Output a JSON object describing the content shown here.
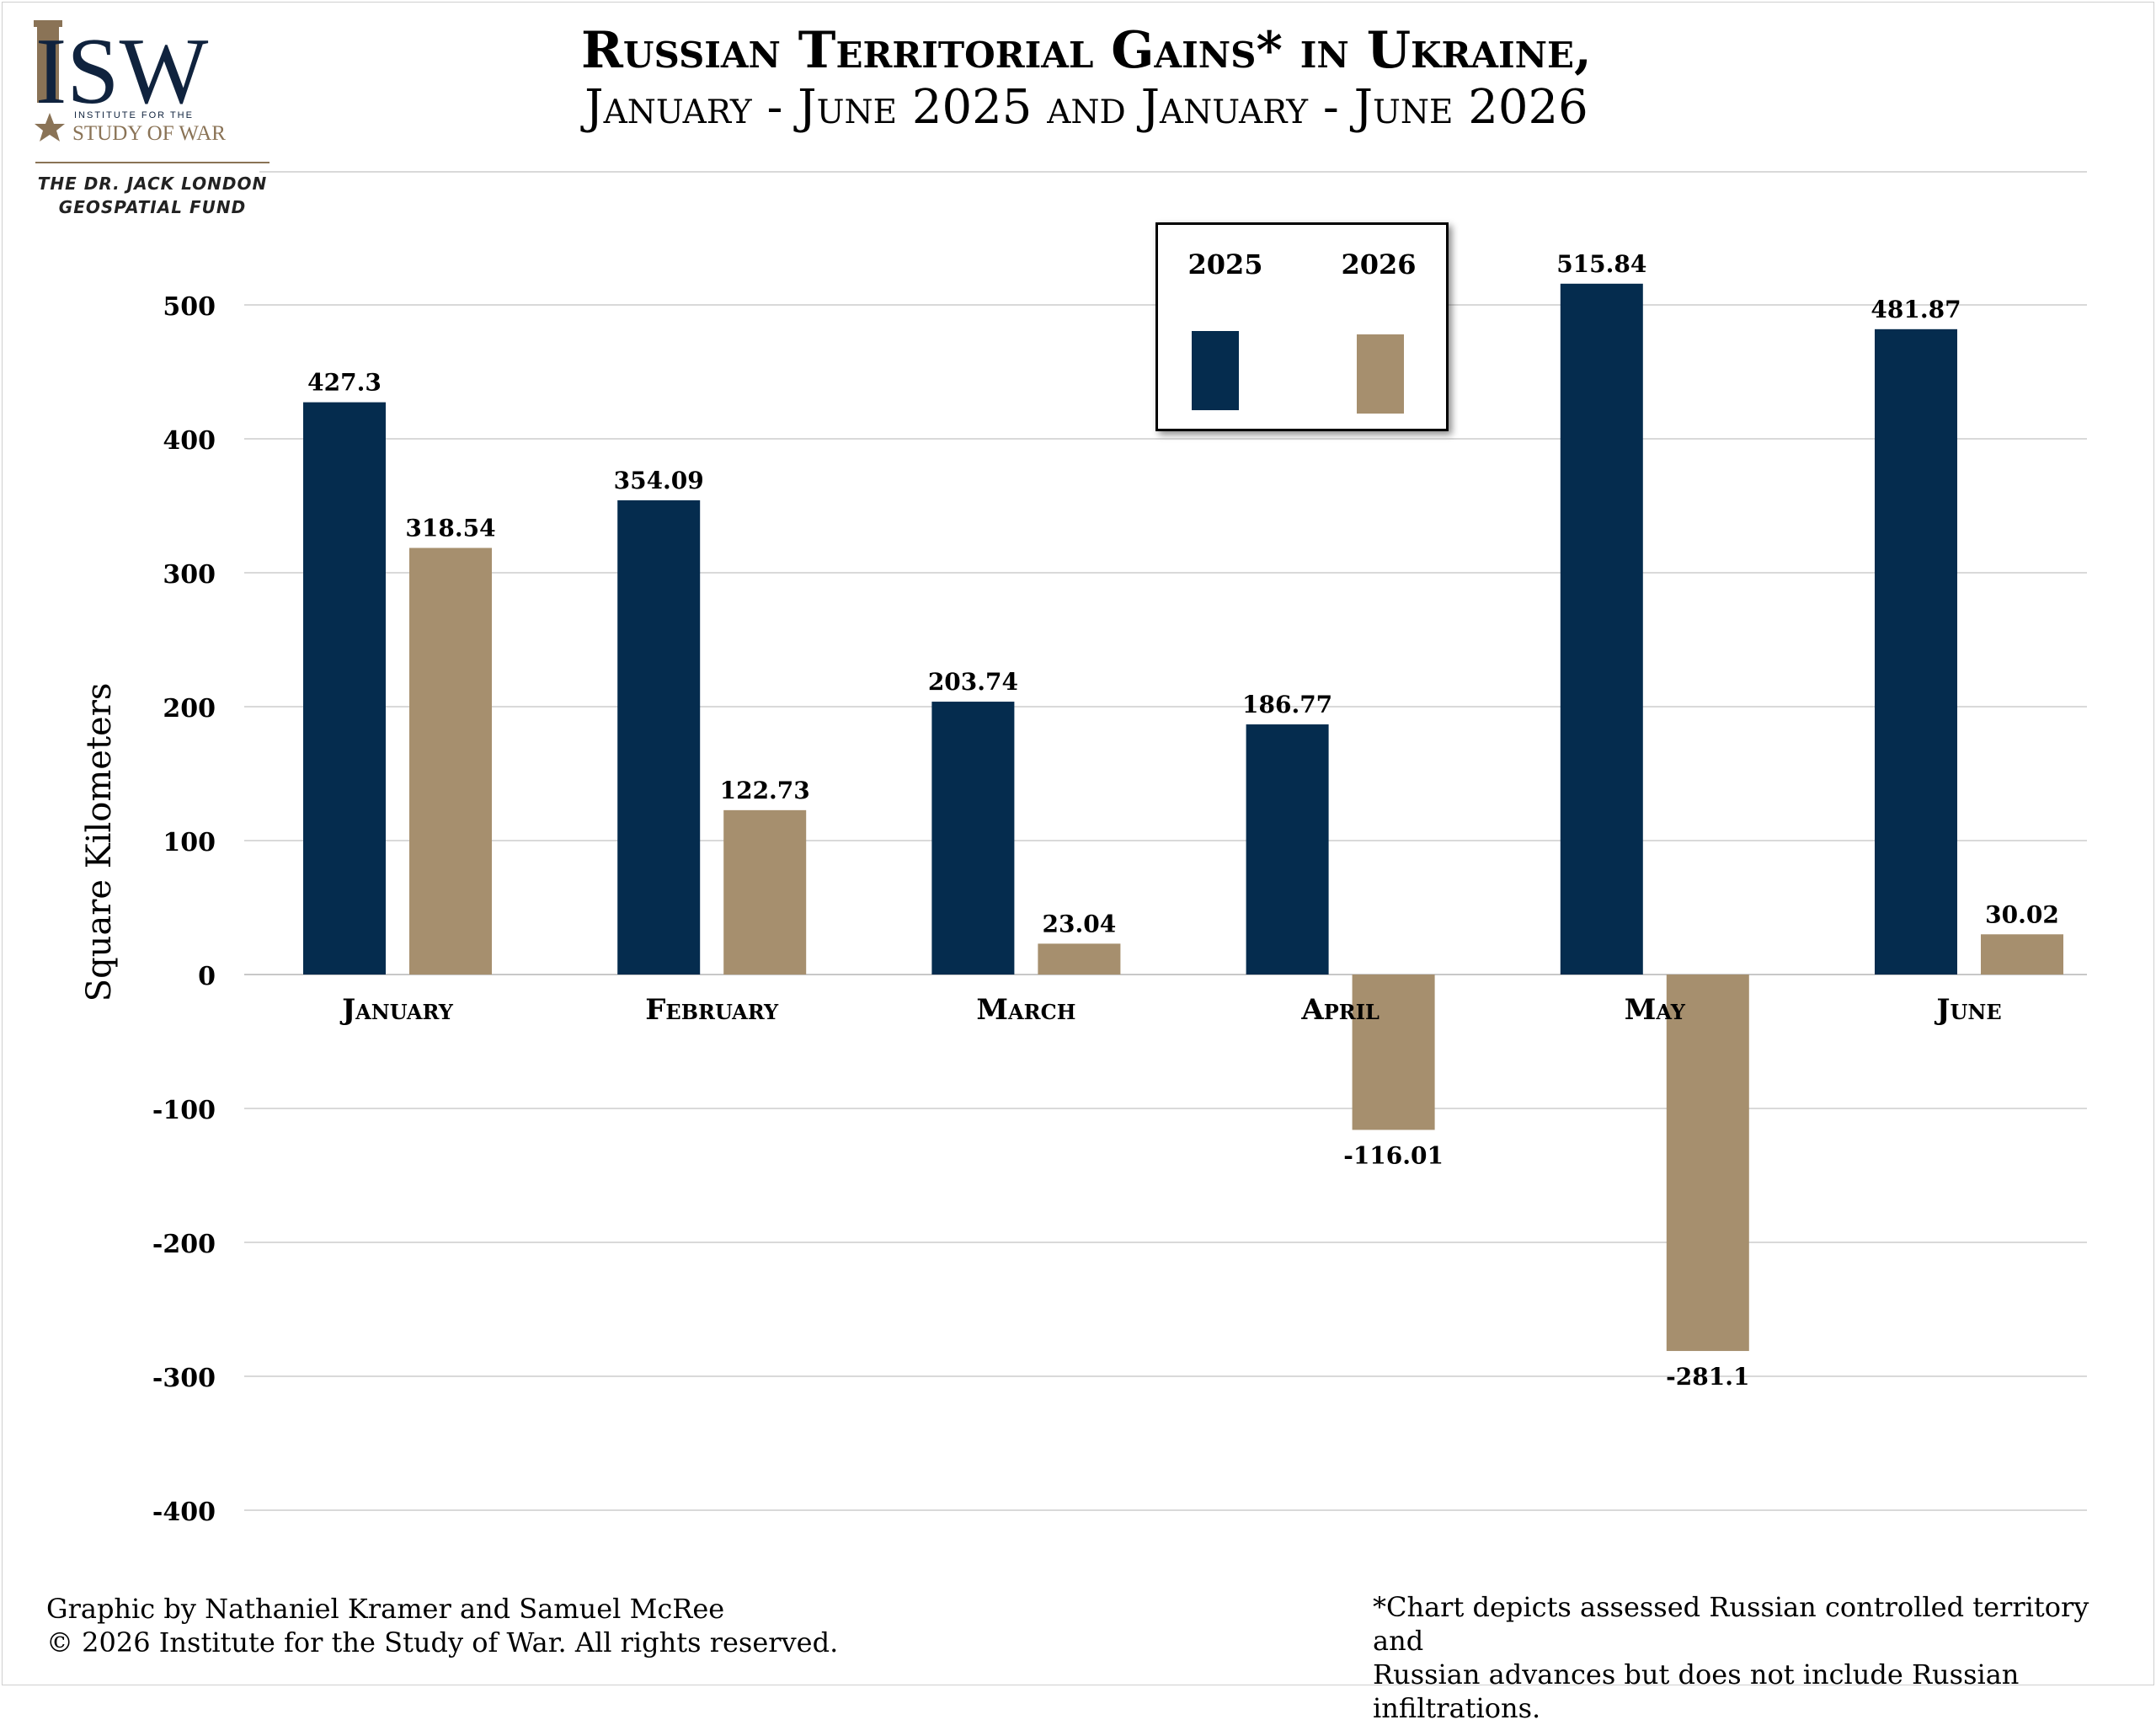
{
  "logo": {
    "letters": "ISW",
    "subtitle_small": "INSTITUTE FOR THE",
    "subtitle_big": "STUDY OF WAR",
    "fund_line1": "THE DR. JACK LONDON",
    "fund_line2": "GEOSPATIAL FUND"
  },
  "title": {
    "line1": "Russian Territorial Gains* in Ukraine,",
    "line2": "January - June 2025 and January - June 2026"
  },
  "credits": {
    "line1": "Graphic by Nathaniel Kramer and Samuel McRee",
    "line2": "© 2026 Institute for the Study of War. All rights reserved."
  },
  "footnote": {
    "line1": "*Chart depicts assessed Russian controlled territory and",
    "line2": "Russian advances but does not include Russian infiltrations."
  },
  "colors": {
    "series_2025": "#052c4e",
    "series_2026": "#a68f6e",
    "grid": "#d9d9d9",
    "logo_brown": "#8a7356",
    "logo_navy": "#10233e"
  },
  "chart_data": {
    "type": "bar",
    "title": "Russian Territorial Gains* in Ukraine, January - June 2025 and January - June 2026",
    "xlabel": "",
    "ylabel": "Square Kilometers",
    "categories": [
      "January",
      "February",
      "March",
      "April",
      "May",
      "June"
    ],
    "series": [
      {
        "name": "2025",
        "values": [
          427.3,
          354.09,
          203.74,
          186.77,
          515.84,
          481.87
        ]
      },
      {
        "name": "2026",
        "values": [
          318.54,
          122.73,
          23.04,
          -116.01,
          -281.1,
          30.02
        ]
      }
    ],
    "value_labels": [
      [
        "427.3",
        "354.09",
        "203.74",
        "186.77",
        "515.84",
        "481.87"
      ],
      [
        "318.54",
        "122.73",
        "23.04",
        "-116.01",
        "-281.1",
        "30.02"
      ]
    ],
    "ylim": [
      -400,
      500
    ],
    "yticks": [
      500,
      400,
      300,
      200,
      100,
      0,
      -100,
      -200,
      -300,
      -400
    ],
    "ytick_labels": [
      "500",
      "400",
      "300",
      "200",
      "100",
      "0",
      "-100",
      "-200",
      "-300",
      "-400"
    ],
    "grid": true,
    "legend_position": "top-center"
  }
}
